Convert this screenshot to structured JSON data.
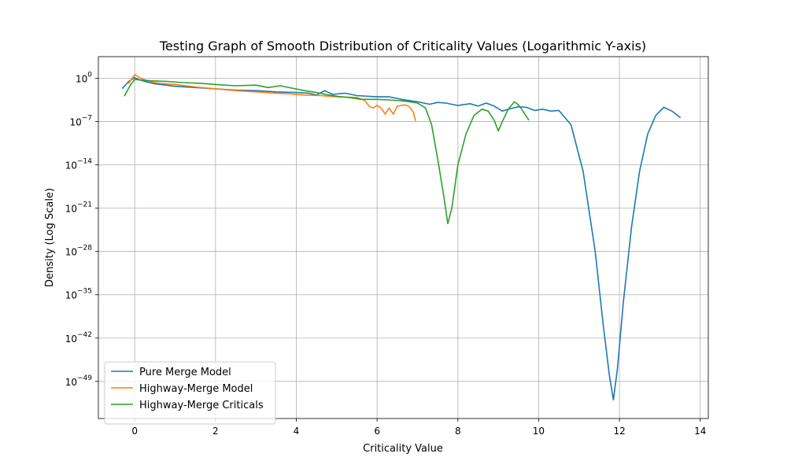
{
  "chart_data": {
    "type": "line",
    "title": "Testing Graph of Smooth Distribution of Criticality Values (Logarithmic Y-axis)",
    "xlabel": "Criticality Value",
    "ylabel": "Density (Log Scale)",
    "y_scale": "log",
    "xlim": [
      -0.9,
      14.2
    ],
    "ylim_exponent": [
      -55,
      3.5
    ],
    "grid": true,
    "legend_position": "lower-left",
    "x_ticks": [
      0,
      2,
      4,
      6,
      8,
      10,
      12,
      14
    ],
    "x_tick_labels": [
      "0",
      "2",
      "4",
      "6",
      "8",
      "10",
      "12",
      "14"
    ],
    "y_ticks_exponent": [
      0,
      -7,
      -14,
      -21,
      -28,
      -35,
      -42,
      -49
    ],
    "y_tick_labels": [
      {
        "base": "10",
        "exp": "0"
      },
      {
        "base": "10",
        "exp": "−7"
      },
      {
        "base": "10",
        "exp": "−14"
      },
      {
        "base": "10",
        "exp": "−21"
      },
      {
        "base": "10",
        "exp": "−28"
      },
      {
        "base": "10",
        "exp": "−35"
      },
      {
        "base": "10",
        "exp": "−42"
      },
      {
        "base": "10",
        "exp": "−49"
      }
    ],
    "series": [
      {
        "name": "Pure Merge Model",
        "color": "#1f77b4",
        "x": [
          -0.3,
          -0.15,
          0,
          0.1,
          0.3,
          0.5,
          1,
          1.5,
          2,
          2.5,
          3,
          3.5,
          4,
          4.3,
          4.5,
          4.7,
          4.9,
          5.2,
          5.5,
          6,
          6.3,
          6.6,
          7,
          7.3,
          7.5,
          7.7,
          8,
          8.3,
          8.5,
          8.7,
          8.9,
          9.1,
          9.3,
          9.5,
          9.7,
          9.9,
          10.1,
          10.3,
          10.5,
          10.8,
          11.1,
          11.4,
          11.6,
          11.75,
          11.85,
          11.95,
          12.1,
          12.3,
          12.5,
          12.7,
          12.9,
          13.1,
          13.3,
          13.5
        ],
        "y_exponent": [
          -1.6,
          -0.5,
          0.1,
          -0.2,
          -0.6,
          -0.9,
          -1.3,
          -1.5,
          -1.7,
          -1.9,
          -2.0,
          -2.2,
          -2.3,
          -2.4,
          -2.7,
          -2.0,
          -2.6,
          -2.4,
          -2.8,
          -3.0,
          -3.0,
          -3.4,
          -3.8,
          -4.2,
          -3.9,
          -4.0,
          -4.4,
          -4.1,
          -4.5,
          -4.0,
          -4.5,
          -5.3,
          -4.9,
          -4.6,
          -4.7,
          -5.2,
          -5.0,
          -5.3,
          -5.2,
          -7.5,
          -15,
          -28,
          -40,
          -48,
          -52,
          -47,
          -36,
          -24,
          -15,
          -9,
          -6.0,
          -4.7,
          -5.3,
          -6.3
        ]
      },
      {
        "name": "Highway-Merge Model",
        "color": "#ff7f0e",
        "x": [
          -0.15,
          0,
          0.15,
          0.4,
          0.6,
          1,
          1.5,
          2,
          2.5,
          3,
          3.5,
          3.8,
          4.2,
          4.6,
          5,
          5.5,
          5.7,
          5.8,
          5.9,
          6.0,
          6.1,
          6.2,
          6.3,
          6.4,
          6.5,
          6.6,
          6.7,
          6.8,
          6.9,
          6.95
        ],
        "y_exponent": [
          -0.8,
          0.6,
          0.0,
          -0.6,
          -0.8,
          -1.0,
          -1.4,
          -1.7,
          -2.0,
          -2.2,
          -2.4,
          -2.5,
          -2.7,
          -2.8,
          -3.0,
          -3.1,
          -3.6,
          -4.5,
          -4.8,
          -4.4,
          -4.8,
          -5.8,
          -4.8,
          -5.8,
          -4.5,
          -4.4,
          -4.3,
          -4.6,
          -5.5,
          -6.8
        ]
      },
      {
        "name": "Highway-Merge Criticals",
        "color": "#2ca02c",
        "x": [
          -0.25,
          -0.1,
          0,
          0.2,
          0.4,
          0.8,
          1.2,
          1.6,
          2,
          2.5,
          3,
          3.3,
          3.6,
          3.9,
          4.2,
          4.5,
          4.8,
          5,
          5.3,
          5.6,
          6,
          6.3,
          6.7,
          7,
          7.2,
          7.35,
          7.5,
          7.65,
          7.75,
          7.85,
          8.0,
          8.2,
          8.4,
          8.6,
          8.75,
          8.9,
          9.0,
          9.1,
          9.25,
          9.4,
          9.5,
          9.6,
          9.7,
          9.75
        ],
        "y_exponent": [
          -2.8,
          -1.0,
          -0.2,
          -0.3,
          -0.4,
          -0.5,
          -0.7,
          -0.8,
          -1.0,
          -1.2,
          -1.1,
          -1.5,
          -1.2,
          -1.6,
          -2.0,
          -2.3,
          -2.7,
          -2.9,
          -3.1,
          -3.4,
          -3.4,
          -3.5,
          -3.7,
          -4.0,
          -4.8,
          -7.5,
          -13,
          -19,
          -23.5,
          -21,
          -14,
          -9,
          -6,
          -5.0,
          -5.3,
          -6.8,
          -8.5,
          -7.0,
          -5.0,
          -3.8,
          -4.3,
          -5.2,
          -6.2,
          -6.7
        ]
      }
    ]
  }
}
